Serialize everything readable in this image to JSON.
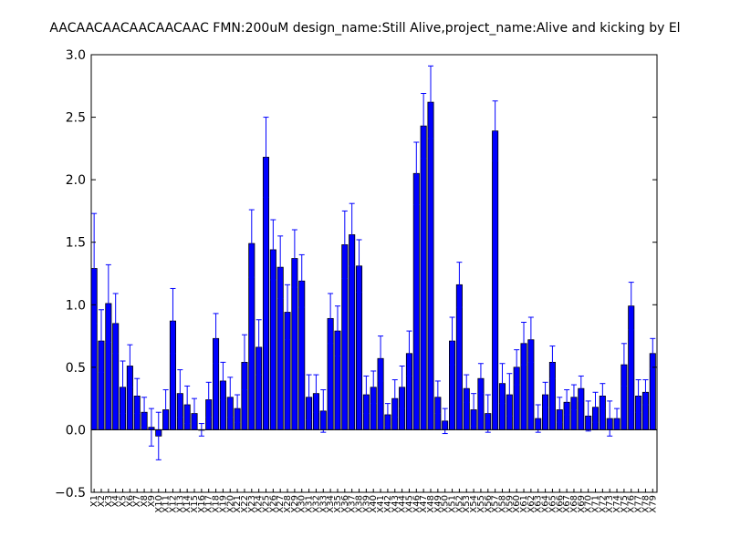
{
  "chart_data": {
    "type": "bar",
    "title": "AACAACAACAACAACAAC  FMN:200uM  design_name:Still Alive,project_name:Alive and kicking by El",
    "xlabel": "",
    "ylabel": "",
    "ylim": [
      -0.5,
      3.0
    ],
    "yticks": [
      -0.5,
      0.0,
      0.5,
      1.0,
      1.5,
      2.0,
      2.5,
      3.0
    ],
    "ytick_labels": [
      "−0.5",
      "0.0",
      "0.5",
      "1.0",
      "1.5",
      "2.0",
      "2.5",
      "3.0"
    ],
    "grid": false,
    "legend": "none",
    "bar_color": "#0000ff",
    "error_color": "#0000ff",
    "categories": [
      "X1",
      "X2",
      "X3",
      "X4",
      "X5",
      "X6",
      "X7",
      "X8",
      "X9",
      "X10",
      "X11",
      "X12",
      "X13",
      "X14",
      "X15",
      "X16",
      "X17",
      "X18",
      "X19",
      "X20",
      "X21",
      "X22",
      "X23",
      "X24",
      "X25",
      "X26",
      "X27",
      "X28",
      "X29",
      "X30",
      "X31",
      "X32",
      "X33",
      "X34",
      "X35",
      "X36",
      "X37",
      "X38",
      "X39",
      "X40",
      "X41",
      "X42",
      "X43",
      "X44",
      "X45",
      "X46",
      "X47",
      "X48",
      "X49",
      "X50",
      "X51",
      "X52",
      "X53",
      "X54",
      "X55",
      "X56",
      "X57",
      "X58",
      "X59",
      "X60",
      "X61",
      "X62",
      "X63",
      "X64",
      "X65",
      "X66",
      "X67",
      "X68",
      "X69",
      "X70",
      "X71",
      "X72",
      "X73",
      "X74",
      "X75",
      "X76",
      "X77",
      "X78",
      "X79"
    ],
    "values": [
      1.29,
      0.71,
      1.01,
      0.85,
      0.34,
      0.51,
      0.27,
      0.14,
      0.02,
      -0.05,
      0.16,
      0.87,
      0.29,
      0.2,
      0.13,
      0.0,
      0.24,
      0.73,
      0.39,
      0.26,
      0.17,
      0.54,
      1.49,
      0.66,
      2.18,
      1.44,
      1.3,
      0.94,
      1.37,
      1.19,
      0.26,
      0.29,
      0.15,
      0.89,
      0.79,
      1.48,
      1.56,
      1.31,
      0.28,
      0.34,
      0.57,
      0.12,
      0.25,
      0.34,
      0.61,
      2.05,
      2.43,
      2.62,
      0.26,
      0.07,
      0.71,
      1.16,
      0.33,
      0.16,
      0.41,
      0.13,
      2.39,
      0.37,
      0.28,
      0.5,
      0.69,
      0.72,
      0.09,
      0.28,
      0.54,
      0.16,
      0.22,
      0.26,
      0.33,
      0.11,
      0.18,
      0.27,
      0.09,
      0.09,
      0.52,
      0.99,
      0.27,
      0.3,
      0.61
    ],
    "errors": [
      0.44,
      0.25,
      0.31,
      0.24,
      0.21,
      0.17,
      0.14,
      0.12,
      0.15,
      0.19,
      0.16,
      0.26,
      0.19,
      0.15,
      0.12,
      0.05,
      0.14,
      0.2,
      0.15,
      0.16,
      0.11,
      0.22,
      0.27,
      0.22,
      0.32,
      0.24,
      0.25,
      0.22,
      0.23,
      0.21,
      0.18,
      0.15,
      0.17,
      0.2,
      0.2,
      0.27,
      0.25,
      0.21,
      0.15,
      0.13,
      0.18,
      0.09,
      0.15,
      0.17,
      0.18,
      0.25,
      0.26,
      0.29,
      0.13,
      0.1,
      0.19,
      0.18,
      0.11,
      0.13,
      0.12,
      0.15,
      0.24,
      0.16,
      0.17,
      0.14,
      0.17,
      0.18,
      0.11,
      0.1,
      0.13,
      0.1,
      0.1,
      0.1,
      0.1,
      0.12,
      0.12,
      0.1,
      0.14,
      0.08,
      0.17,
      0.19,
      0.13,
      0.1,
      0.12
    ]
  }
}
